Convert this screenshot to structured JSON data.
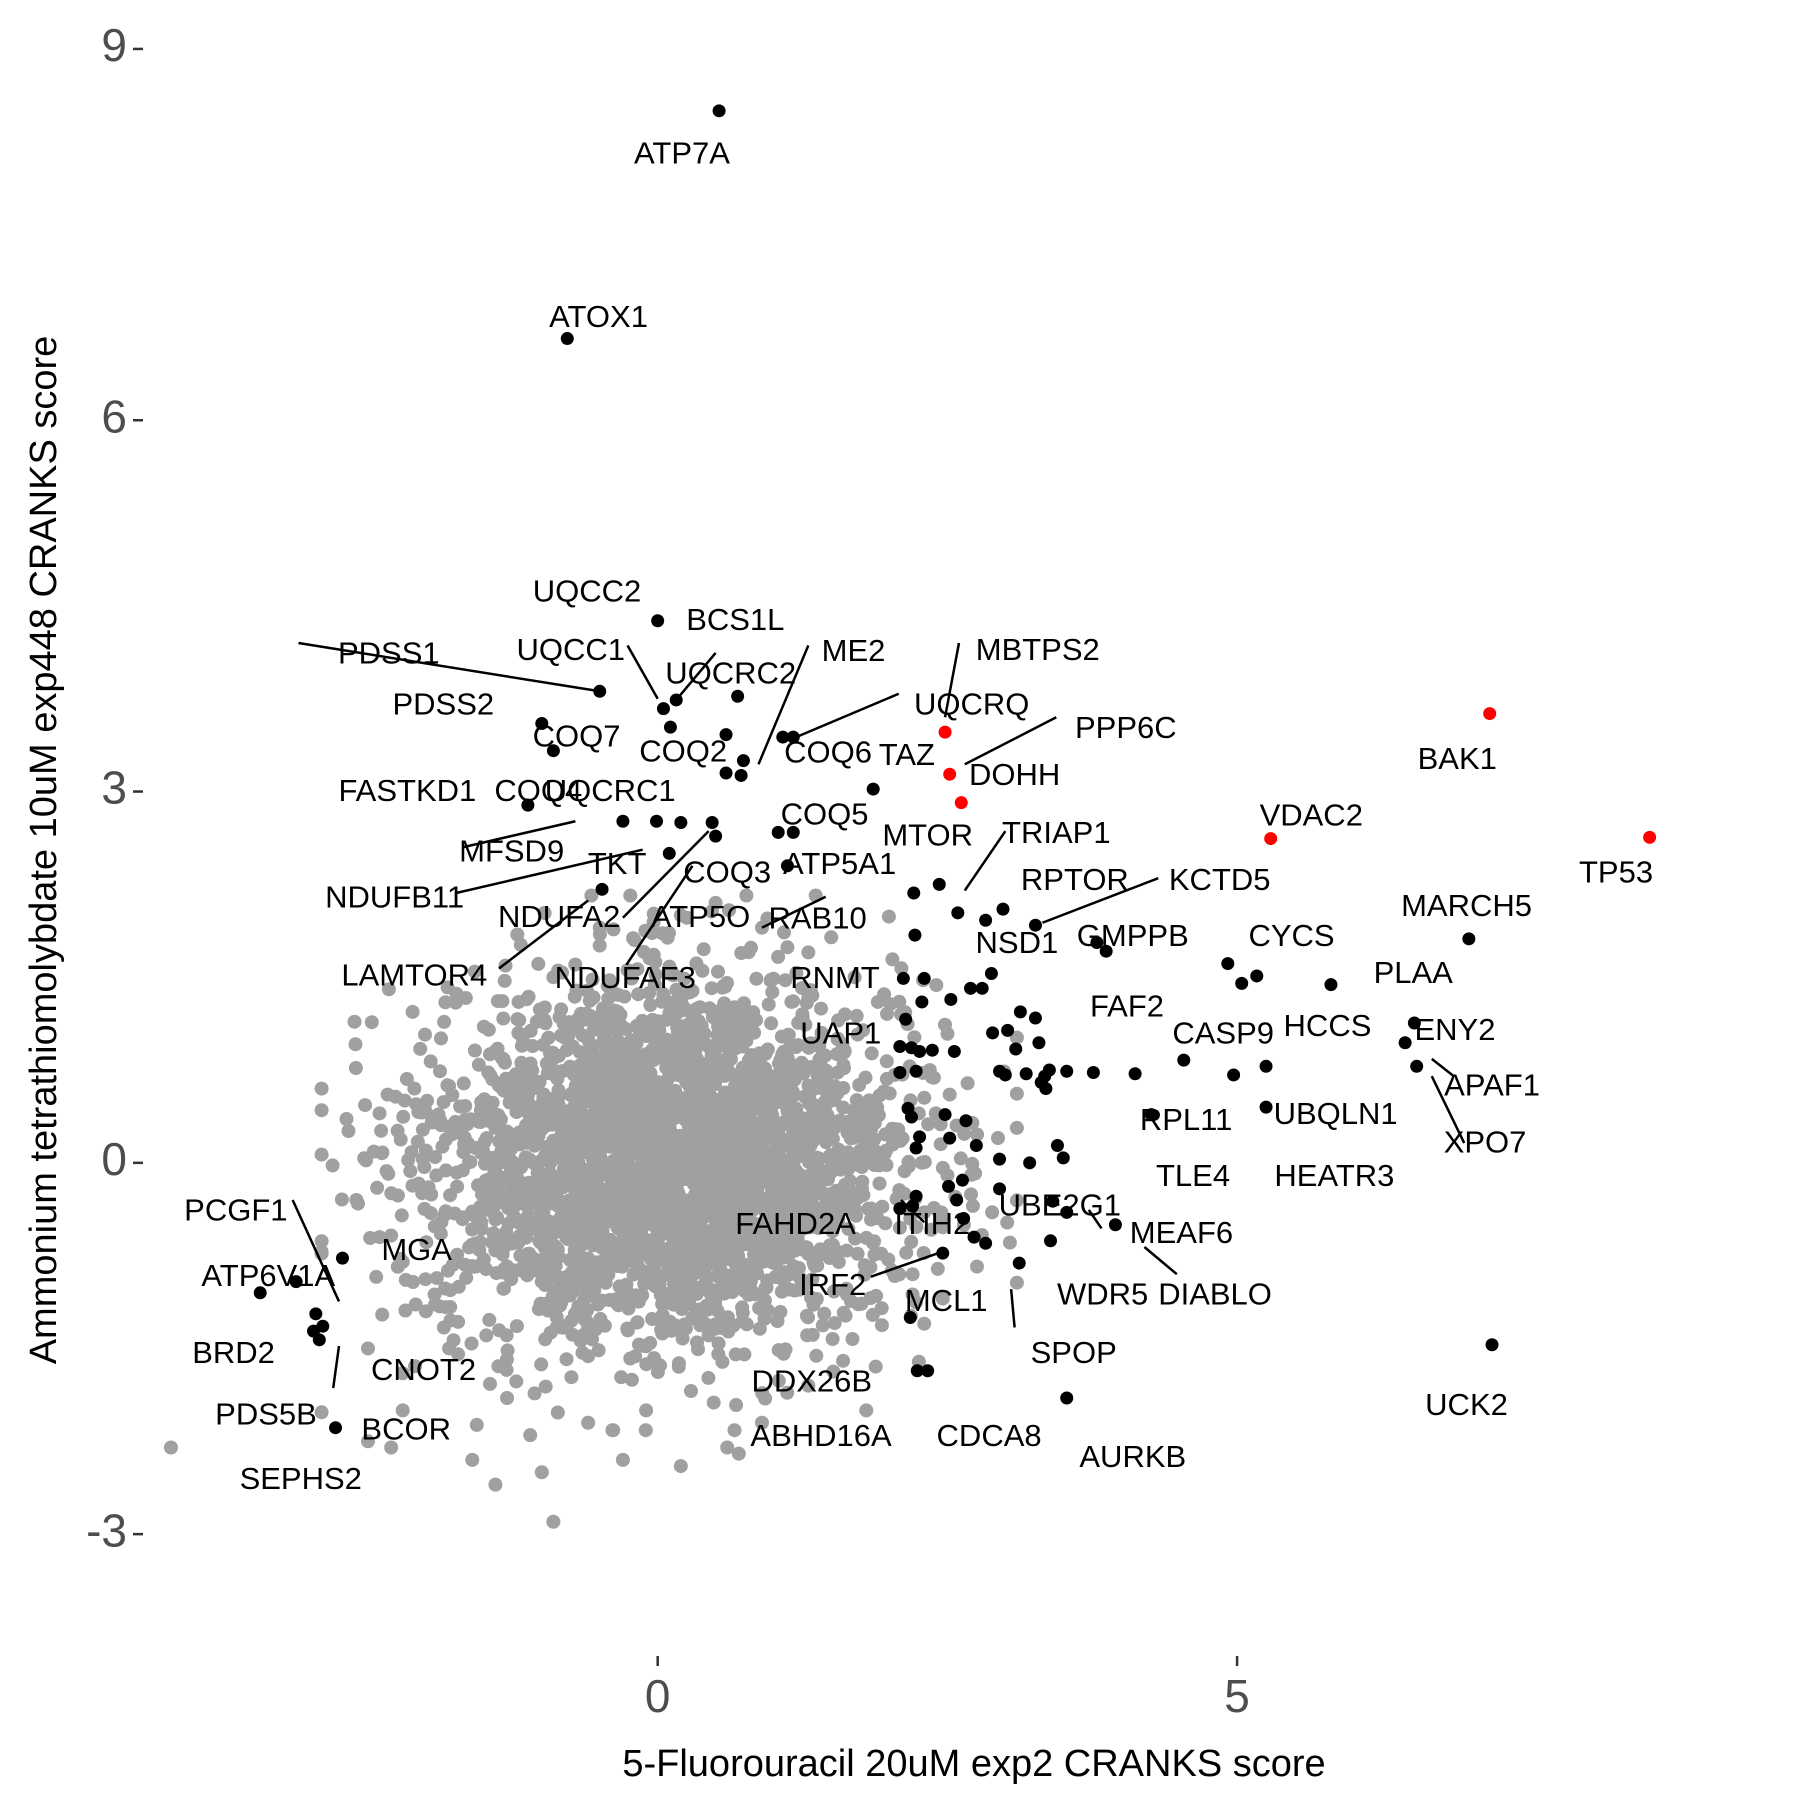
{
  "chart_data": {
    "type": "scatter",
    "title": "",
    "xlabel": "5-Fluorouracil 20uM exp2 CRANKS score",
    "ylabel": "Ammonium tetrathiomolybdate 10uM exp448 CRANKS score",
    "xlim": [
      -4.45,
      9.15
    ],
    "ylim": [
      -3.92,
      9.25
    ],
    "x_ticks": [
      0,
      5
    ],
    "x_tick_labels": [
      "0",
      "5"
    ],
    "y_ticks": [
      -3,
      0,
      3,
      6,
      9
    ],
    "y_tick_labels": [
      "-3",
      "0",
      "3",
      "6",
      "9"
    ],
    "grid": false,
    "legend": "none",
    "colors": {
      "background": "#ffffff",
      "neutral": "#a0a0a0",
      "highlight": "#000000",
      "emphasis": "#ff0000"
    },
    "background_cloud": {
      "color": "#a0a0a0",
      "n": 3200,
      "center": [
        0.1,
        0.0
      ],
      "sd": [
        1.0,
        0.72
      ]
    },
    "neutral_outliers": [
      [
        -2.5,
        -2.25
      ],
      [
        -2.3,
        -2.3
      ],
      [
        -2.2,
        -2.0
      ],
      [
        -1.6,
        -2.4
      ],
      [
        -1.4,
        -2.6
      ],
      [
        -1.0,
        -2.5
      ],
      [
        -0.9,
        -2.9
      ],
      [
        -0.6,
        -2.1
      ],
      [
        -0.3,
        -2.4
      ],
      [
        0.2,
        -2.45
      ],
      [
        0.6,
        -2.3
      ],
      [
        0.7,
        -2.35
      ],
      [
        1.3,
        -1.8
      ],
      [
        1.6,
        -1.6
      ],
      [
        2.3,
        -1.3
      ],
      [
        2.2,
        -0.9
      ],
      [
        -2.0,
        0.1
      ],
      [
        -2.2,
        -0.8
      ],
      [
        -2.0,
        -1.2
      ],
      [
        -1.8,
        -1.5
      ],
      [
        -1.5,
        1.1
      ],
      [
        -1.2,
        1.3
      ],
      [
        -0.9,
        1.5
      ],
      [
        -0.5,
        1.9
      ],
      [
        -0.2,
        1.8
      ],
      [
        0.2,
        2.0
      ],
      [
        0.5,
        2.1
      ],
      [
        0.9,
        1.9
      ],
      [
        1.3,
        1.7
      ],
      [
        1.7,
        1.5
      ],
      [
        1.9,
        1.3
      ],
      [
        2.1,
        1.2
      ],
      [
        -2.4,
        0.4
      ],
      [
        -2.6,
        -0.3
      ],
      [
        -2.4,
        -0.6
      ],
      [
        -2.1,
        0.6
      ],
      [
        2.4,
        0.4
      ],
      [
        2.3,
        -0.4
      ],
      [
        2.5,
        -0.1
      ],
      [
        -1.3,
        -1.9
      ],
      [
        1.8,
        -2.0
      ],
      [
        -0.1,
        -2.0
      ],
      [
        -2.5,
        -1.5
      ],
      [
        -2.2,
        -1.7
      ],
      [
        -2.9,
        0.6
      ],
      [
        -4.2,
        -2.3
      ],
      [
        -1.1,
        -2.2
      ],
      [
        0.9,
        -2.1
      ]
    ],
    "highlight_points": [
      [
        -0.78,
        6.66
      ],
      [
        0.53,
        8.5
      ],
      [
        -0.5,
        3.81
      ],
      [
        0.0,
        4.38
      ],
      [
        0.16,
        3.74
      ],
      [
        0.05,
        3.67
      ],
      [
        0.11,
        3.52
      ],
      [
        0.74,
        3.25
      ],
      [
        0.59,
        3.15
      ],
      [
        0.72,
        3.13
      ],
      [
        0.69,
        3.77
      ],
      [
        0.59,
        3.46
      ],
      [
        -1.0,
        3.55
      ],
      [
        -0.9,
        3.33
      ],
      [
        -1.12,
        2.89
      ],
      [
        -0.01,
        2.76
      ],
      [
        -0.3,
        2.76
      ],
      [
        0.2,
        2.75
      ],
      [
        0.47,
        2.75
      ],
      [
        0.5,
        2.64
      ],
      [
        1.08,
        3.44
      ],
      [
        1.17,
        3.44
      ],
      [
        1.04,
        2.67
      ],
      [
        1.17,
        2.67
      ],
      [
        1.86,
        3.02
      ],
      [
        1.12,
        2.4
      ],
      [
        0.1,
        2.5
      ],
      [
        -0.48,
        2.21
      ],
      [
        2.21,
        2.18
      ],
      [
        2.43,
        2.25
      ],
      [
        2.59,
        2.02
      ],
      [
        2.83,
        1.96
      ],
      [
        2.98,
        2.05
      ],
      [
        3.26,
        1.92
      ],
      [
        2.22,
        1.84
      ],
      [
        2.12,
        1.49
      ],
      [
        2.3,
        1.49
      ],
      [
        2.28,
        1.3
      ],
      [
        2.53,
        1.32
      ],
      [
        2.7,
        1.41
      ],
      [
        2.8,
        1.41
      ],
      [
        2.88,
        1.53
      ],
      [
        3.13,
        1.22
      ],
      [
        3.26,
        1.17
      ],
      [
        2.89,
        1.05
      ],
      [
        3.02,
        1.07
      ],
      [
        3.29,
        0.97
      ],
      [
        3.09,
        0.92
      ],
      [
        3.38,
        0.75
      ],
      [
        3.18,
        0.72
      ],
      [
        3.0,
        0.71
      ],
      [
        2.95,
        0.74
      ],
      [
        3.34,
        0.7
      ],
      [
        3.31,
        0.65
      ],
      [
        3.35,
        0.6
      ],
      [
        3.53,
        0.74
      ],
      [
        3.76,
        0.73
      ],
      [
        4.12,
        0.72
      ],
      [
        4.26,
        0.39
      ],
      [
        2.09,
        0.94
      ],
      [
        2.19,
        0.93
      ],
      [
        2.37,
        0.91
      ],
      [
        2.26,
        0.9
      ],
      [
        2.56,
        0.9
      ],
      [
        2.23,
        0.74
      ],
      [
        2.14,
        1.16
      ],
      [
        2.09,
        0.73
      ],
      [
        2.16,
        0.44
      ],
      [
        2.19,
        0.37
      ],
      [
        2.26,
        0.21
      ],
      [
        2.23,
        0.12
      ],
      [
        2.52,
        0.2
      ],
      [
        2.66,
        0.34
      ],
      [
        2.48,
        0.39
      ],
      [
        2.75,
        0.14
      ],
      [
        2.95,
        0.03
      ],
      [
        3.21,
        0.0
      ],
      [
        3.45,
        0.14
      ],
      [
        3.5,
        0.04
      ],
      [
        3.95,
        -0.5
      ],
      [
        3.53,
        -0.4
      ],
      [
        3.41,
        -0.31
      ],
      [
        2.95,
        -0.21
      ],
      [
        2.63,
        -0.14
      ],
      [
        2.51,
        -0.19
      ],
      [
        2.64,
        -0.45
      ],
      [
        2.23,
        -0.27
      ],
      [
        2.58,
        -0.3
      ],
      [
        2.09,
        -0.37
      ],
      [
        2.2,
        -0.35
      ],
      [
        2.73,
        -0.6
      ],
      [
        2.46,
        -0.73
      ],
      [
        2.83,
        -0.65
      ],
      [
        3.12,
        -0.81
      ],
      [
        3.39,
        -0.63
      ],
      [
        2.18,
        -1.25
      ],
      [
        2.24,
        -1.68
      ],
      [
        2.33,
        -1.68
      ],
      [
        3.53,
        -1.9
      ],
      [
        4.54,
        0.83
      ],
      [
        4.97,
        0.71
      ],
      [
        5.04,
        1.45
      ],
      [
        5.17,
        1.51
      ],
      [
        5.25,
        0.78
      ],
      [
        5.25,
        0.45
      ],
      [
        5.81,
        1.44
      ],
      [
        6.45,
        0.97
      ],
      [
        6.53,
        1.13
      ],
      [
        6.55,
        0.78
      ],
      [
        7.0,
        1.81
      ],
      [
        7.2,
        -1.47
      ],
      [
        4.92,
        1.61
      ],
      [
        3.87,
        1.71
      ],
      [
        3.79,
        1.78
      ],
      [
        -3.43,
        -1.05
      ],
      [
        -3.12,
        -0.96
      ],
      [
        -2.72,
        -0.77
      ],
      [
        -2.95,
        -1.22
      ],
      [
        -2.92,
        -1.43
      ],
      [
        -2.89,
        -1.32
      ],
      [
        -2.97,
        -1.36
      ],
      [
        -2.78,
        -2.14
      ]
    ],
    "emphasis_points": [
      [
        2.48,
        3.48
      ],
      [
        2.52,
        3.14
      ],
      [
        2.62,
        2.91
      ],
      [
        5.29,
        2.62
      ],
      [
        7.18,
        3.63
      ],
      [
        8.56,
        2.63
      ]
    ],
    "labels": [
      {
        "text": "ATP7A",
        "x": 0.21,
        "y": 8.14
      },
      {
        "text": "ATOX1",
        "x": -0.51,
        "y": 6.82
      },
      {
        "text": "UQCC2",
        "x": -0.61,
        "y": 4.6
      },
      {
        "text": "BCS1L",
        "x": 0.67,
        "y": 4.37
      },
      {
        "text": "PDSS1",
        "x": -2.32,
        "y": 4.1
      },
      {
        "text": "UQCC1",
        "x": -0.75,
        "y": 4.13
      },
      {
        "text": "UQCRC2",
        "x": 0.63,
        "y": 3.94
      },
      {
        "text": "ME2",
        "x": 1.69,
        "y": 4.12
      },
      {
        "text": "MBTPS2",
        "x": 3.28,
        "y": 4.13
      },
      {
        "text": "PDSS2",
        "x": -1.85,
        "y": 3.69
      },
      {
        "text": "UQCRQ",
        "x": 2.71,
        "y": 3.69
      },
      {
        "text": "COQ7",
        "x": -0.7,
        "y": 3.43
      },
      {
        "text": "COQ2",
        "x": 0.22,
        "y": 3.31
      },
      {
        "text": "PPP6C",
        "x": 4.04,
        "y": 3.5
      },
      {
        "text": "COQ6",
        "x": 1.47,
        "y": 3.3
      },
      {
        "text": "TAZ",
        "x": 2.15,
        "y": 3.28
      },
      {
        "text": "DOHH",
        "x": 3.08,
        "y": 3.12
      },
      {
        "text": "BAK1",
        "x": 6.9,
        "y": 3.25
      },
      {
        "text": "FASTKD1",
        "x": -2.16,
        "y": 2.99
      },
      {
        "text": "COQ4",
        "x": -1.03,
        "y": 2.99
      },
      {
        "text": "UQCRC1",
        "x": -0.41,
        "y": 2.99
      },
      {
        "text": "COQ5",
        "x": 1.44,
        "y": 2.8
      },
      {
        "text": "VDAC2",
        "x": 5.64,
        "y": 2.79
      },
      {
        "text": "MTOR",
        "x": 2.33,
        "y": 2.63
      },
      {
        "text": "TRIAP1",
        "x": 3.44,
        "y": 2.65
      },
      {
        "text": "MFSD9",
        "x": -1.26,
        "y": 2.5
      },
      {
        "text": "TKT",
        "x": -0.35,
        "y": 2.4
      },
      {
        "text": "COQ3",
        "x": 0.6,
        "y": 2.33
      },
      {
        "text": "ATP5A1",
        "x": 1.57,
        "y": 2.4
      },
      {
        "text": "TP53",
        "x": 8.27,
        "y": 2.33
      },
      {
        "text": "RPTOR",
        "x": 3.6,
        "y": 2.27
      },
      {
        "text": "KCTD5",
        "x": 4.85,
        "y": 2.27
      },
      {
        "text": "NDUFB11",
        "x": -2.27,
        "y": 2.13
      },
      {
        "text": "MARCH5",
        "x": 6.98,
        "y": 2.06
      },
      {
        "text": "NDUFA2",
        "x": -0.85,
        "y": 1.97
      },
      {
        "text": "ATP5O",
        "x": 0.37,
        "y": 1.97
      },
      {
        "text": "RAB10",
        "x": 1.38,
        "y": 1.96
      },
      {
        "text": "NSD1",
        "x": 3.1,
        "y": 1.76
      },
      {
        "text": "GMPPB",
        "x": 4.1,
        "y": 1.82
      },
      {
        "text": "CYCS",
        "x": 5.47,
        "y": 1.82
      },
      {
        "text": "LAMTOR4",
        "x": -2.1,
        "y": 1.5
      },
      {
        "text": "NDUFAF3",
        "x": -0.28,
        "y": 1.48
      },
      {
        "text": "RNMT",
        "x": 1.53,
        "y": 1.48
      },
      {
        "text": "PLAA",
        "x": 6.52,
        "y": 1.52
      },
      {
        "text": "FAF2",
        "x": 4.05,
        "y": 1.25
      },
      {
        "text": "CASP9",
        "x": 4.88,
        "y": 1.03
      },
      {
        "text": "HCCS",
        "x": 5.78,
        "y": 1.09
      },
      {
        "text": "ENY2",
        "x": 6.88,
        "y": 1.06
      },
      {
        "text": "UAP1",
        "x": 1.58,
        "y": 1.03
      },
      {
        "text": "APAF1",
        "x": 7.2,
        "y": 0.61
      },
      {
        "text": "RPL11",
        "x": 4.56,
        "y": 0.33
      },
      {
        "text": "UBQLN1",
        "x": 5.85,
        "y": 0.38
      },
      {
        "text": "XPO7",
        "x": 7.14,
        "y": 0.15
      },
      {
        "text": "TLE4",
        "x": 4.62,
        "y": -0.12
      },
      {
        "text": "HEATR3",
        "x": 5.84,
        "y": -0.12
      },
      {
        "text": "PCGF1",
        "x": -3.64,
        "y": -0.4
      },
      {
        "text": "UBE2G1",
        "x": 3.47,
        "y": -0.36
      },
      {
        "text": "FAHD2A",
        "x": 1.19,
        "y": -0.51
      },
      {
        "text": "ITIH2",
        "x": 2.37,
        "y": -0.51
      },
      {
        "text": "MEAF6",
        "x": 4.52,
        "y": -0.58
      },
      {
        "text": "MGA",
        "x": -2.08,
        "y": -0.72
      },
      {
        "text": "ATP6V1A",
        "x": -3.36,
        "y": -0.93
      },
      {
        "text": "IRF2",
        "x": 1.51,
        "y": -1.0
      },
      {
        "text": "MCL1",
        "x": 2.49,
        "y": -1.13
      },
      {
        "text": "WDR5",
        "x": 3.84,
        "y": -1.08
      },
      {
        "text": "DIABLO",
        "x": 4.81,
        "y": -1.08
      },
      {
        "text": "BRD2",
        "x": -3.66,
        "y": -1.55
      },
      {
        "text": "SPOP",
        "x": 3.59,
        "y": -1.55
      },
      {
        "text": "CNOT2",
        "x": -2.02,
        "y": -1.69
      },
      {
        "text": "DDX26B",
        "x": 1.33,
        "y": -1.78
      },
      {
        "text": "UCK2",
        "x": 6.98,
        "y": -1.97
      },
      {
        "text": "PDS5B",
        "x": -3.38,
        "y": -2.05
      },
      {
        "text": "BCOR",
        "x": -2.17,
        "y": -2.17
      },
      {
        "text": "ABHD16A",
        "x": 1.41,
        "y": -2.22
      },
      {
        "text": "CDCA8",
        "x": 2.86,
        "y": -2.22
      },
      {
        "text": "AURKB",
        "x": 4.1,
        "y": -2.39
      },
      {
        "text": "SEPHS2",
        "x": -3.08,
        "y": -2.57
      }
    ],
    "connectors": [
      [
        -3.1,
        4.2,
        -0.5,
        3.81
      ],
      [
        -0.26,
        4.18,
        0.0,
        3.75
      ],
      [
        0.5,
        4.12,
        0.16,
        3.74
      ],
      [
        1.3,
        4.18,
        0.87,
        3.22
      ],
      [
        2.6,
        4.2,
        2.48,
        3.6
      ],
      [
        2.08,
        3.79,
        1.22,
        3.45
      ],
      [
        3.44,
        3.6,
        2.65,
        3.22
      ],
      [
        3.0,
        2.68,
        2.65,
        2.2
      ],
      [
        4.32,
        2.3,
        3.32,
        1.94
      ],
      [
        -1.68,
        2.55,
        -0.71,
        2.76
      ],
      [
        -1.74,
        2.18,
        -0.13,
        2.53
      ],
      [
        -1.37,
        1.57,
        -0.6,
        2.12
      ],
      [
        -0.27,
        1.6,
        0.3,
        2.4
      ],
      [
        0.9,
        1.9,
        1.45,
        2.15
      ],
      [
        -0.3,
        1.98,
        0.44,
        2.68
      ],
      [
        2.1,
        -0.3,
        2.3,
        -0.48
      ],
      [
        1.84,
        -0.92,
        2.42,
        -0.73
      ],
      [
        3.05,
        -1.02,
        3.08,
        -1.33
      ],
      [
        3.83,
        -0.53,
        3.72,
        -0.38
      ],
      [
        4.48,
        -0.9,
        4.2,
        -0.68
      ],
      [
        -3.15,
        -0.3,
        -2.75,
        -1.12
      ],
      [
        -2.8,
        -1.82,
        -2.75,
        -1.48
      ],
      [
        6.68,
        0.84,
        6.87,
        0.7
      ],
      [
        6.96,
        0.16,
        6.68,
        0.7
      ]
    ]
  }
}
